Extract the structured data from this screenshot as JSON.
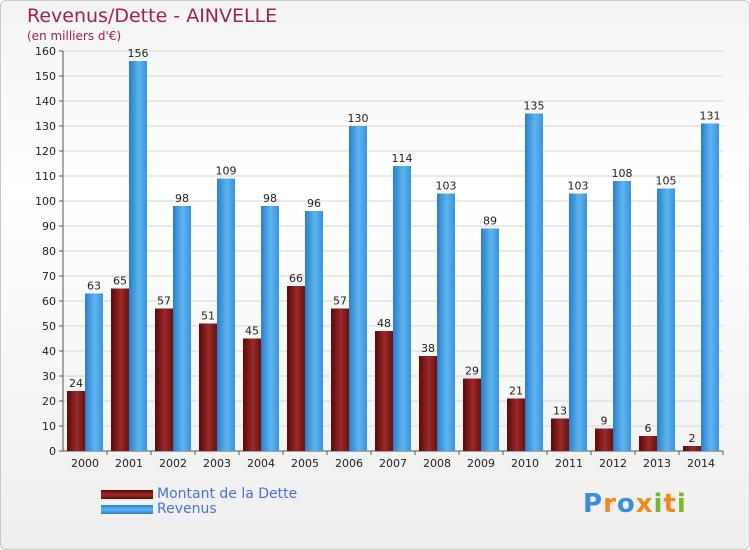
{
  "header": {
    "title": "Revenus/Dette - AINVELLE",
    "subtitle": "(en milliers d'€)"
  },
  "colors": {
    "debt": "#7a1414",
    "revenue": "#3d9ee6",
    "title": "#a3204a",
    "legend_text": "#4a6fd6"
  },
  "chart_data": {
    "type": "bar",
    "title": "Revenus/Dette - AINVELLE",
    "subtitle": "(en milliers d'€)",
    "categories": [
      "2000",
      "2001",
      "2002",
      "2003",
      "2004",
      "2005",
      "2006",
      "2007",
      "2008",
      "2009",
      "2010",
      "2011",
      "2012",
      "2013",
      "2014"
    ],
    "series": [
      {
        "name": "Montant de la Dette",
        "values": [
          24,
          65,
          57,
          51,
          45,
          66,
          57,
          48,
          38,
          29,
          21,
          13,
          9,
          6,
          2
        ]
      },
      {
        "name": "Revenus",
        "values": [
          63,
          156,
          98,
          109,
          98,
          96,
          130,
          114,
          103,
          89,
          135,
          103,
          108,
          105,
          131
        ]
      }
    ],
    "ylim": [
      0,
      160
    ],
    "yticks": [
      0,
      10,
      20,
      30,
      40,
      50,
      60,
      70,
      80,
      90,
      100,
      110,
      120,
      130,
      140,
      150,
      160
    ],
    "grid": true,
    "legend_position": "bottom-left",
    "data_labels": true
  },
  "logo": {
    "letters": [
      {
        "char": "P",
        "color": "#3b8fd6"
      },
      {
        "char": "r",
        "color": "#f08a1c"
      },
      {
        "char": "o",
        "color": "#3b8fd6"
      },
      {
        "char": "x",
        "color": "#f08a1c"
      },
      {
        "char": "i",
        "color": "#77b82a"
      },
      {
        "char": "t",
        "color": "#f08a1c"
      },
      {
        "char": "i",
        "color": "#77b82a"
      }
    ]
  }
}
